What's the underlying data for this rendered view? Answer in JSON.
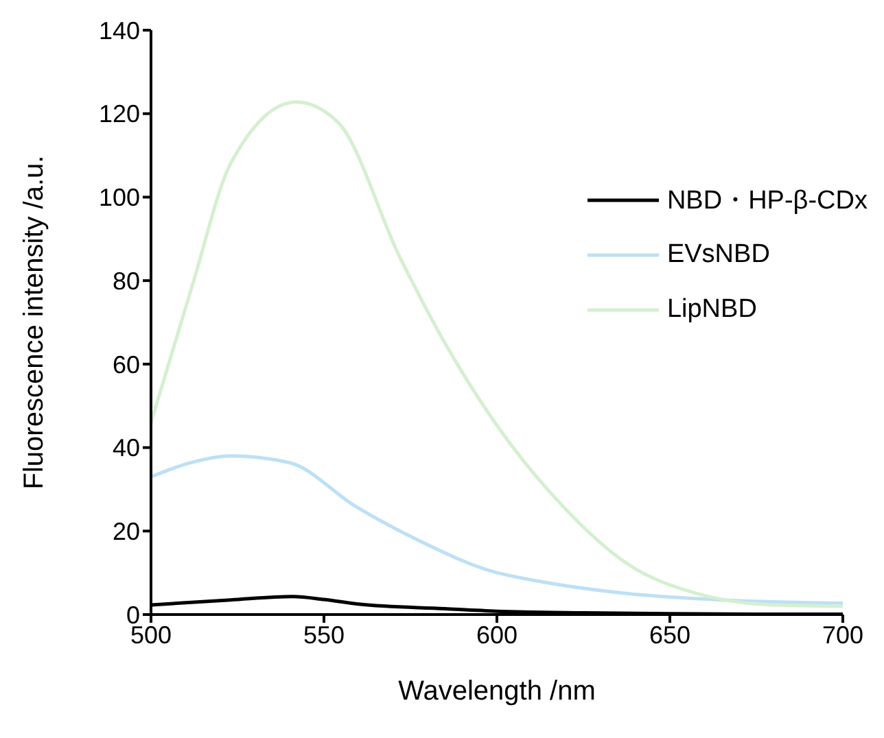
{
  "chart_data": {
    "type": "line",
    "xlabel": "Wavelength /nm",
    "ylabel": "Fluorescence intensity /a.u.",
    "xlim": [
      500,
      700
    ],
    "xticks": [
      500,
      550,
      600,
      650,
      700
    ],
    "ylim": [
      0,
      140
    ],
    "yticks": [
      0,
      20,
      40,
      60,
      80,
      100,
      120,
      140
    ],
    "grid": false,
    "legend": "right",
    "marker": "none",
    "line_style": "solid",
    "series": [
      {
        "name": "NBD・HP-β-CDx",
        "color": "#000000",
        "x": [
          500,
          523,
          541,
          550,
          560,
          585,
          600,
          625,
          650,
          675,
          700
        ],
        "values": [
          2.3,
          3.5,
          4.3,
          3.6,
          2.5,
          1.4,
          0.8,
          0.4,
          0.2,
          0.1,
          0.1
        ]
      },
      {
        "name": "EVsNBD",
        "color": "#bde0f5",
        "x": [
          500,
          512,
          523,
          540,
          559,
          578,
          598,
          612,
          638,
          665,
          700
        ],
        "values": [
          33,
          36.5,
          38,
          36.4,
          26,
          17.5,
          10.5,
          8,
          5,
          3.5,
          2.7
        ]
      },
      {
        "name": "LipNBD",
        "color": "#d5efd0",
        "x": [
          500,
          512,
          523,
          542,
          554,
          572,
          585,
          599,
          619,
          638,
          658,
          678,
          700
        ],
        "values": [
          46,
          79,
          108,
          122.8,
          118,
          85.5,
          65,
          46.5,
          26,
          12,
          5,
          2.4,
          2
        ]
      }
    ]
  }
}
